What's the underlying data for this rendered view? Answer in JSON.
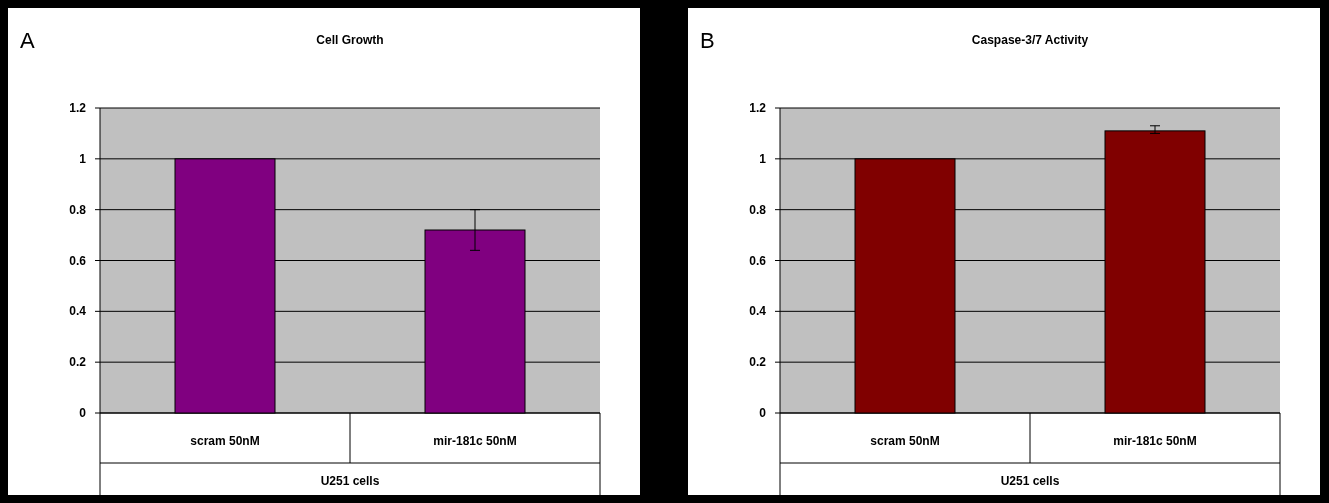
{
  "chart_data": [
    {
      "type": "bar",
      "title": "Cell Growth",
      "annotations": [
        "A"
      ],
      "xlabel": "U251 cells",
      "categories": [
        "scram 50nM",
        "mir-181c 50nM"
      ],
      "values": [
        1,
        0.72
      ],
      "errors": [
        null,
        0.08
      ],
      "color": "#800080",
      "ylim": [
        0,
        1.2
      ],
      "yticks": [
        0,
        0.2,
        0.4,
        0.6,
        0.8,
        1,
        1.2
      ],
      "grid": "y"
    },
    {
      "type": "bar",
      "title": "Caspase-3/7 Activity",
      "annotations": [
        "B"
      ],
      "xlabel": "U251 cells",
      "categories": [
        "scram 50nM",
        "mir-181c 50nM"
      ],
      "values": [
        1,
        1.11
      ],
      "errors": [
        null,
        [
          1.1,
          1.13
        ]
      ],
      "color": "#800000",
      "ylim": [
        0,
        1.2
      ],
      "yticks": [
        0,
        0.2,
        0.4,
        0.6,
        0.8,
        1,
        1.2
      ],
      "grid": "y"
    }
  ]
}
